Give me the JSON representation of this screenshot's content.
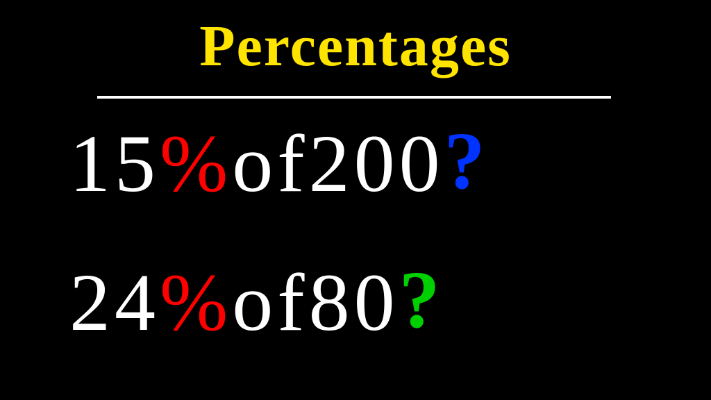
{
  "title": {
    "text": "Percentages",
    "color": "#ffe400",
    "fontsize": 84
  },
  "underline": {
    "color": "#ffffff",
    "thickness": 4
  },
  "rows": [
    {
      "segments": [
        {
          "text": "15",
          "color": "#ffffff"
        },
        {
          "text": "%",
          "color": "#ff0000"
        },
        {
          "text": " of ",
          "color": "#ffffff"
        },
        {
          "text": "200",
          "color": "#ffffff"
        }
      ],
      "question": {
        "text": "?",
        "color": "#0033ff"
      }
    },
    {
      "segments": [
        {
          "text": "24",
          "color": "#ffffff"
        },
        {
          "text": "%",
          "color": "#ff0000"
        },
        {
          "text": " of  ",
          "color": "#ffffff"
        },
        {
          "text": "80",
          "color": "#ffffff"
        }
      ],
      "question": {
        "text": "?",
        "color": "#00d000"
      }
    }
  ],
  "background_color": "#000000",
  "body_fontsize": 118
}
